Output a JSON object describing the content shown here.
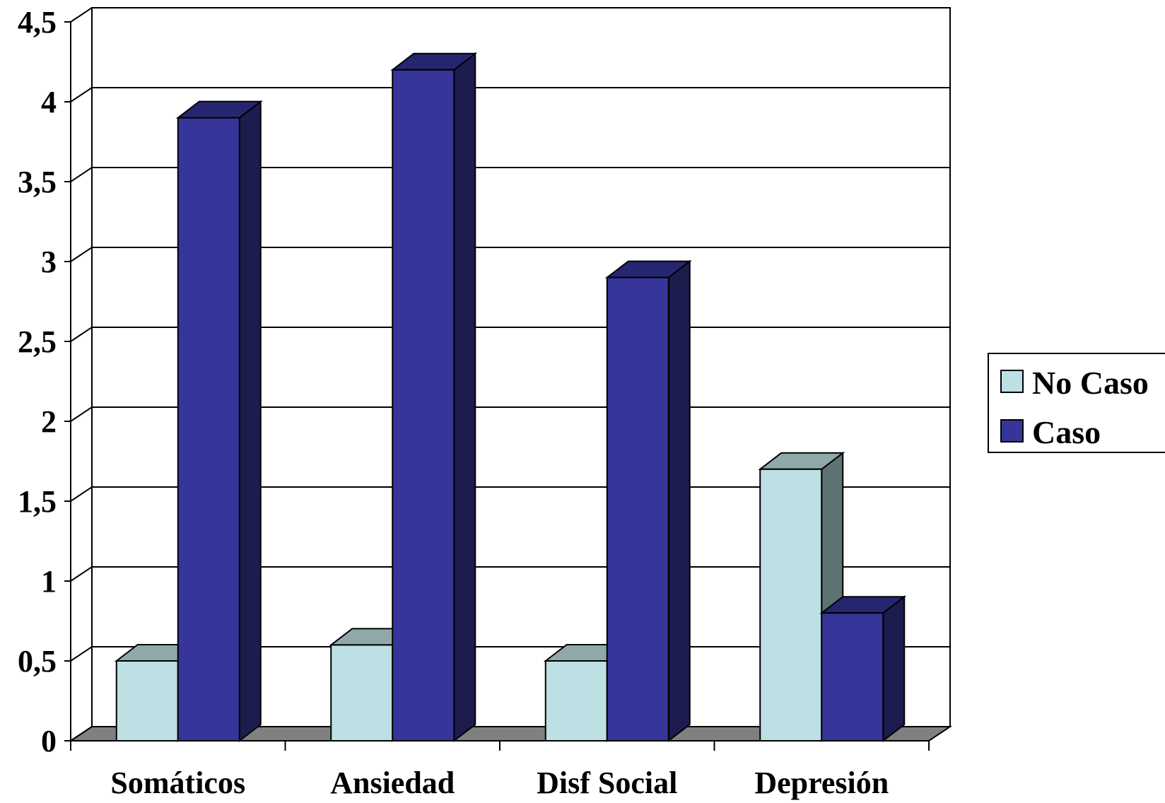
{
  "chart_data": {
    "type": "bar",
    "categories": [
      "Somáticos",
      "Ansiedad",
      "Disf Social",
      "Depresión"
    ],
    "series": [
      {
        "name": "No Caso",
        "values": [
          0.5,
          0.6,
          0.5,
          1.7
        ]
      },
      {
        "name": "Caso",
        "values": [
          3.9,
          4.2,
          2.9,
          0.8
        ]
      }
    ],
    "y_ticks": [
      "0",
      "0,5",
      "1",
      "1,5",
      "2",
      "2,5",
      "3",
      "3,5",
      "4",
      "4,5"
    ],
    "ylim": [
      0,
      4.5
    ],
    "grid": true,
    "legend_position": "right",
    "colors": {
      "no_caso_front": "#bce0e3",
      "no_caso_top": "#8fa9aa",
      "no_caso_side": "#5e7374",
      "caso_front": "#35359a",
      "caso_top": "#262670",
      "caso_side": "#1c1c4e",
      "floor": "#808080"
    }
  }
}
